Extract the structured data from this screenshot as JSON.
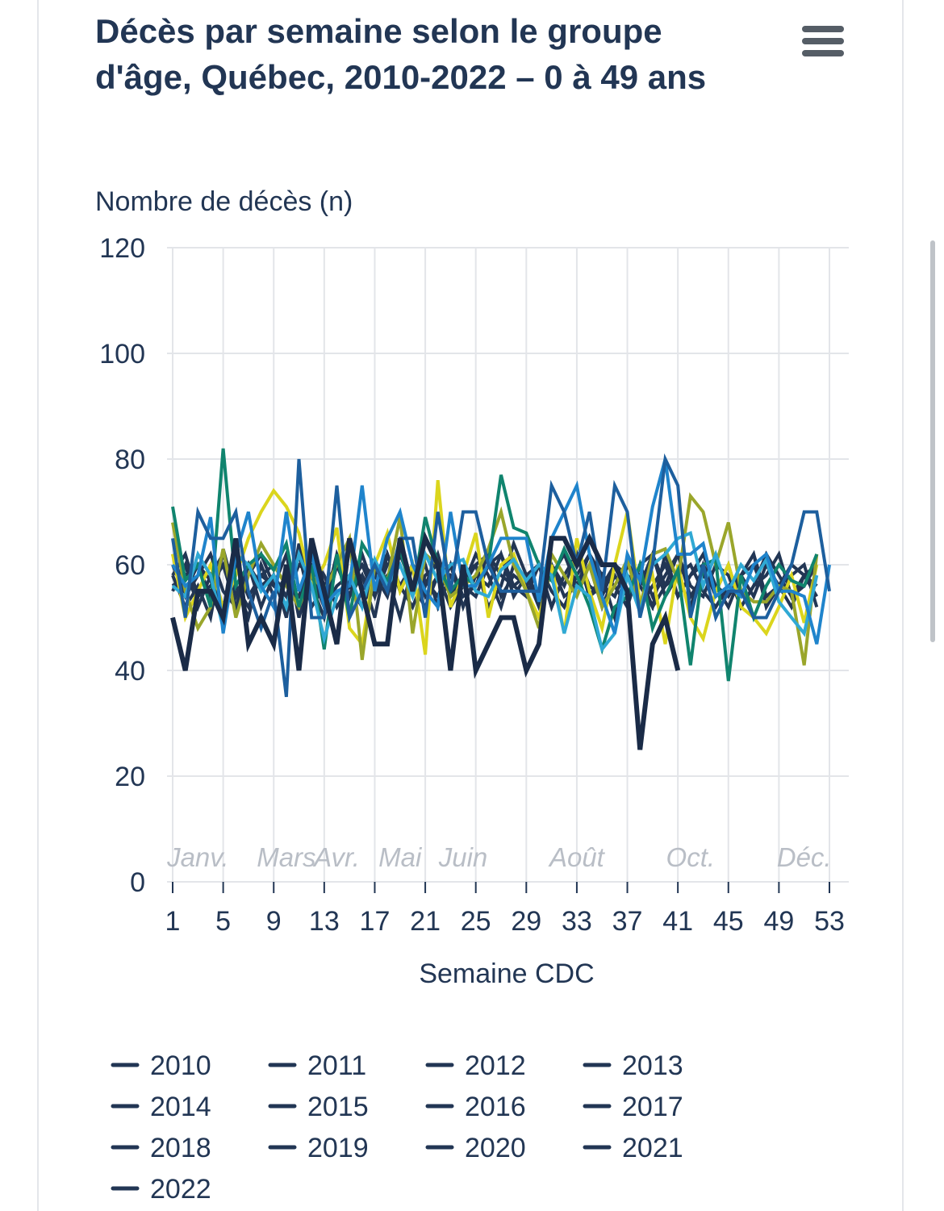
{
  "chart_data": {
    "type": "line",
    "title": "Décès par semaine selon le groupe d'âge, Québec, 2010-2022 – 0 à 49 ans",
    "ylabel": "Nombre de décès (n)",
    "xlabel": "Semaine CDC",
    "ylim": [
      0,
      120
    ],
    "yticks": [
      0,
      20,
      40,
      60,
      80,
      100,
      120
    ],
    "xlim": [
      1,
      53
    ],
    "xticks": [
      1,
      5,
      9,
      13,
      17,
      21,
      25,
      29,
      33,
      37,
      41,
      45,
      49,
      53
    ],
    "month_labels": [
      {
        "x": 3,
        "label": "Janv."
      },
      {
        "x": 10,
        "label": "Mars"
      },
      {
        "x": 14,
        "label": "Avr."
      },
      {
        "x": 19,
        "label": "Mai"
      },
      {
        "x": 24,
        "label": "Juin"
      },
      {
        "x": 33,
        "label": "Août"
      },
      {
        "x": 42,
        "label": "Oct."
      },
      {
        "x": 51,
        "label": "Déc."
      }
    ],
    "grid": true,
    "legend_position": "bottom",
    "series": [
      {
        "name": "2010",
        "color": "#223654",
        "values": [
          58,
          52,
          56,
          50,
          63,
          54,
          60,
          52,
          58,
          50,
          64,
          56,
          50,
          60,
          54,
          62,
          55,
          58,
          50,
          60,
          56,
          62,
          54,
          58,
          60,
          52,
          56,
          64,
          58,
          54,
          60,
          56,
          62,
          54,
          58,
          50,
          60,
          56,
          62,
          54,
          58,
          60,
          55,
          52,
          56,
          58,
          54,
          60,
          56,
          52,
          58,
          60
        ]
      },
      {
        "name": "2011",
        "color": "#223654",
        "values": [
          62,
          55,
          60,
          57,
          52,
          60,
          54,
          58,
          56,
          62,
          50,
          58,
          54,
          60,
          56,
          52,
          58,
          62,
          55,
          60,
          57,
          54,
          60,
          52,
          58,
          56,
          62,
          54,
          58,
          60,
          55,
          52,
          58,
          62,
          56,
          54,
          60,
          58,
          52,
          56,
          62,
          54,
          58,
          55,
          60,
          52,
          56,
          58,
          62,
          54,
          58,
          56
        ]
      },
      {
        "name": "2012",
        "color": "#223654",
        "values": [
          55,
          60,
          52,
          58,
          62,
          56,
          50,
          60,
          54,
          58,
          62,
          52,
          56,
          60,
          54,
          58,
          50,
          62,
          56,
          60,
          54,
          58,
          52,
          56,
          60,
          62,
          54,
          58,
          56,
          60,
          52,
          58,
          62,
          54,
          56,
          60,
          58,
          52,
          56,
          60,
          54,
          58,
          62,
          56,
          52,
          58,
          60,
          54,
          56,
          58,
          60,
          52
        ]
      },
      {
        "name": "2013",
        "color": "#223654",
        "values": [
          60,
          54,
          58,
          62,
          55,
          52,
          60,
          56,
          58,
          54,
          62,
          60,
          52,
          56,
          58,
          60,
          54,
          62,
          56,
          52,
          58,
          60,
          54,
          56,
          62,
          58,
          52,
          60,
          56,
          54,
          58,
          62,
          56,
          60,
          52,
          58,
          54,
          60,
          62,
          56,
          58,
          52,
          60,
          54,
          56,
          58,
          62,
          54,
          56,
          60,
          58,
          54
        ]
      },
      {
        "name": "2014",
        "color": "#223654",
        "values": [
          56,
          58,
          60,
          54,
          62,
          56,
          52,
          58,
          60,
          56,
          54,
          62,
          58,
          52,
          56,
          60,
          58,
          54,
          62,
          56,
          60,
          52,
          58,
          56,
          54,
          60,
          62,
          56,
          58,
          52,
          60,
          54,
          56,
          62,
          58,
          56,
          52,
          60,
          54,
          58,
          62,
          56,
          54,
          60,
          58,
          52,
          56,
          62,
          58,
          54,
          56,
          60
        ]
      },
      {
        "name": "2015",
        "color": "#223654",
        "values": [
          58,
          62,
          54,
          56,
          60,
          52,
          58,
          62,
          56,
          54,
          60,
          58,
          52,
          62,
          56,
          58,
          54,
          60,
          62,
          56,
          52,
          58,
          60,
          54,
          56,
          62,
          58,
          56,
          54,
          60,
          52,
          58,
          62,
          56,
          54,
          60,
          58,
          56,
          52,
          62,
          54,
          58,
          60,
          56,
          54,
          58,
          62,
          52,
          56,
          60,
          58,
          56
        ]
      },
      {
        "name": "2016",
        "color": "#dbd51d",
        "values": [
          62,
          50,
          55,
          60,
          52,
          58,
          65,
          70,
          74,
          71,
          66,
          56,
          60,
          67,
          48,
          45,
          60,
          66,
          55,
          60,
          43,
          76,
          52,
          58,
          66,
          50,
          60,
          62,
          55,
          50,
          60,
          47,
          65,
          55,
          48,
          60,
          70,
          53,
          58,
          45,
          60,
          50,
          46,
          55,
          60,
          52,
          50,
          47,
          52,
          58,
          49,
          60
        ]
      },
      {
        "name": "2017",
        "color": "#9aa62b",
        "values": [
          68,
          55,
          48,
          52,
          63,
          50,
          58,
          64,
          60,
          56,
          52,
          58,
          55,
          60,
          65,
          42,
          60,
          57,
          69,
          47,
          62,
          60,
          54,
          56,
          58,
          63,
          70,
          60,
          55,
          48,
          62,
          58,
          54,
          60,
          52,
          56,
          61,
          52,
          62,
          63,
          57,
          73,
          70,
          60,
          68,
          55,
          53,
          53,
          56,
          55,
          41,
          62
        ]
      },
      {
        "name": "2018",
        "color": "#10846e",
        "values": [
          71,
          57,
          60,
          52,
          82,
          56,
          60,
          62,
          59,
          64,
          52,
          60,
          44,
          62,
          50,
          64,
          60,
          57,
          63,
          54,
          69,
          60,
          55,
          58,
          56,
          60,
          77,
          67,
          66,
          60,
          57,
          63,
          58,
          52,
          44,
          52,
          54,
          60,
          48,
          54,
          59,
          41,
          60,
          61,
          38,
          58,
          50,
          56,
          60,
          57,
          56,
          62
        ]
      },
      {
        "name": "2019",
        "color": "#30a9d4",
        "values": [
          56,
          54,
          62,
          58,
          48,
          62,
          60,
          55,
          58,
          52,
          62,
          56,
          46,
          54,
          58,
          52,
          61,
          56,
          60,
          54,
          62,
          57,
          60,
          61,
          55,
          54,
          59,
          61,
          57,
          60,
          58,
          47,
          56,
          54,
          44,
          47,
          58,
          51,
          60,
          62,
          65,
          66,
          56,
          62,
          55,
          60,
          57,
          61,
          53,
          50,
          47,
          58
        ]
      },
      {
        "name": "2020",
        "color": "#1f84cc",
        "values": [
          60,
          56,
          58,
          69,
          47,
          62,
          70,
          56,
          52,
          70,
          55,
          62,
          52,
          55,
          56,
          75,
          55,
          65,
          70,
          60,
          55,
          52,
          70,
          56,
          56,
          60,
          65,
          65,
          65,
          53,
          65,
          70,
          75,
          62,
          54,
          47,
          62,
          57,
          71,
          80,
          62,
          62,
          64,
          54,
          56,
          54,
          60,
          62,
          55,
          55,
          54,
          45,
          60
        ]
      },
      {
        "name": "2021",
        "color": "#1d5f9e",
        "values": [
          65,
          50,
          70,
          65,
          65,
          70,
          55,
          48,
          55,
          35,
          80,
          50,
          50,
          75,
          50,
          55,
          60,
          55,
          65,
          65,
          50,
          70,
          55,
          70,
          70,
          60,
          55,
          55,
          55,
          55,
          75,
          70,
          60,
          70,
          55,
          75,
          70,
          50,
          60,
          80,
          75,
          50,
          60,
          50,
          55,
          55,
          50,
          50,
          55,
          60,
          70,
          70,
          55
        ]
      },
      {
        "name": "2022",
        "color": "#1a2b47",
        "values": [
          50,
          40,
          55,
          55,
          50,
          65,
          45,
          50,
          45,
          60,
          40,
          65,
          55,
          45,
          65,
          55,
          45,
          45,
          65,
          55,
          65,
          60,
          40,
          60,
          40,
          45,
          50,
          50,
          40,
          45,
          65,
          65,
          60,
          65,
          60,
          60,
          55,
          25,
          45,
          50,
          40
        ]
      }
    ]
  },
  "menu_icon": "hamburger-menu-icon"
}
